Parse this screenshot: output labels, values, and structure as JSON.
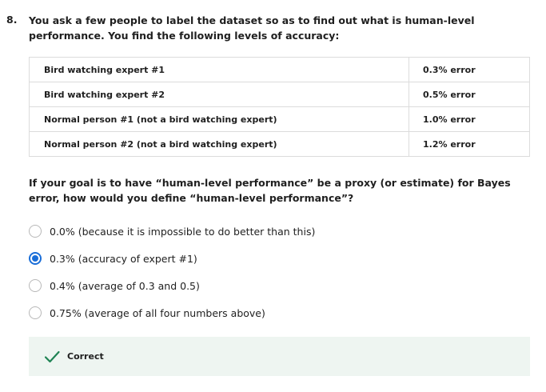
{
  "question": {
    "number": "8.",
    "text": "You ask a few people to label the dataset so as to find out what is human-level performance. You find the following levels of accuracy:"
  },
  "accuracy_table": {
    "rows": [
      {
        "label": "Bird watching expert #1",
        "error": "0.3% error"
      },
      {
        "label": "Bird watching expert #2",
        "error": "0.5% error"
      },
      {
        "label": "Normal person #1 (not a bird watching expert)",
        "error": "1.0% error"
      },
      {
        "label": "Normal person #2 (not a bird watching expert)",
        "error": "1.2% error"
      }
    ]
  },
  "prompt": "If your goal is to have “human-level performance” be a proxy (or estimate) for Bayes error, how would you define “human-level performance”?",
  "options": [
    {
      "label": "0.0% (because it is impossible to do better than this)",
      "selected": false
    },
    {
      "label": "0.3% (accuracy of expert #1)",
      "selected": true
    },
    {
      "label": "0.4% (average of 0.3 and 0.5)",
      "selected": false
    },
    {
      "label": "0.75% (average of all four numbers above)",
      "selected": false
    }
  ],
  "feedback": {
    "label": "Correct",
    "icon": "checkmark-icon",
    "color": "#1f8354"
  },
  "colors": {
    "radio_selected": "#1a6ed8",
    "feedback_background": "#eef5f1"
  }
}
